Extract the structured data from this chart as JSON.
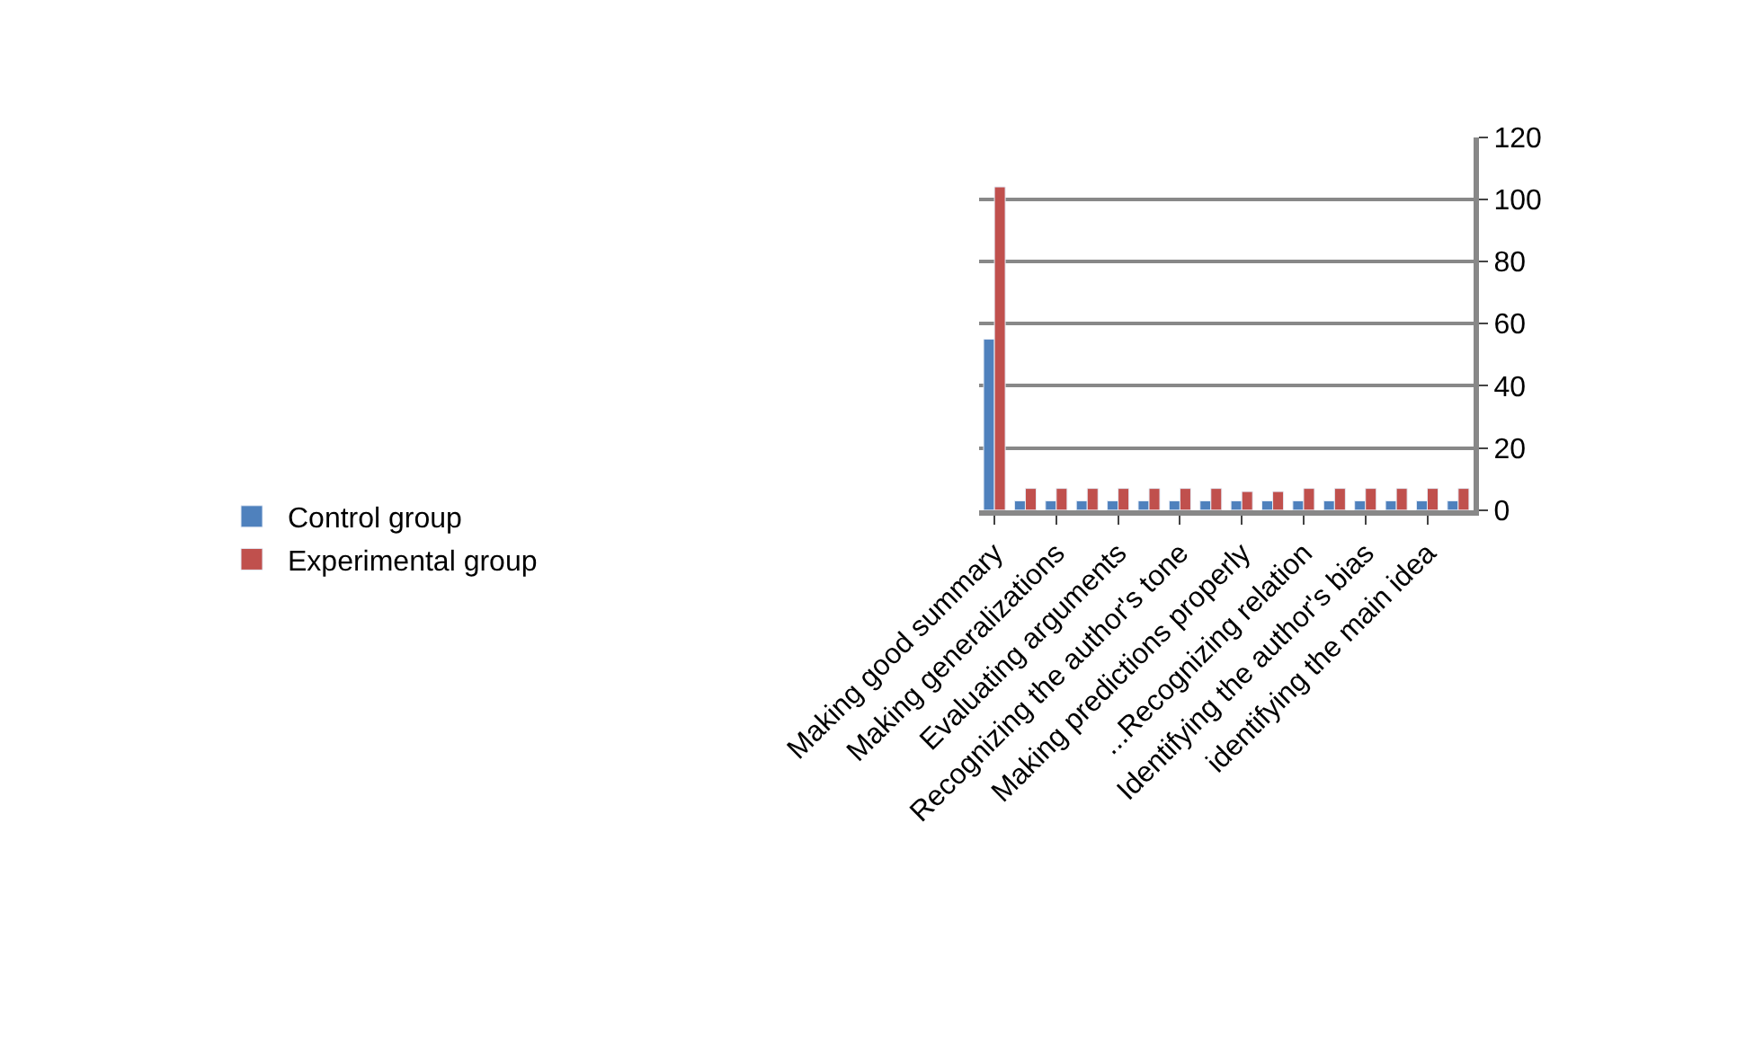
{
  "chart_data": {
    "type": "bar",
    "categories": [
      "Making good summary",
      null,
      "Making generalizations",
      null,
      "Evaluating arguments",
      null,
      "Recognizing the author's tone",
      null,
      "Making predictions properly",
      null,
      "...Recognizing relation",
      null,
      "Identifying the author's bias",
      null,
      "identifying the main idea",
      null
    ],
    "series": [
      {
        "name": "Control group",
        "color": "#4f81bd",
        "values": [
          55,
          3,
          3,
          3,
          3,
          3,
          3,
          3,
          3,
          3,
          3,
          3,
          3,
          3,
          3,
          3
        ]
      },
      {
        "name": "Experimental group",
        "color": "#c0504d",
        "values": [
          104,
          7,
          7,
          7,
          7,
          7,
          7,
          7,
          6,
          6,
          7,
          7,
          7,
          7,
          7,
          7
        ]
      }
    ],
    "ylim": [
      0,
      120
    ],
    "yticks": [
      0,
      20,
      40,
      60,
      80,
      100,
      120
    ],
    "grid": "y",
    "legend": "left"
  }
}
